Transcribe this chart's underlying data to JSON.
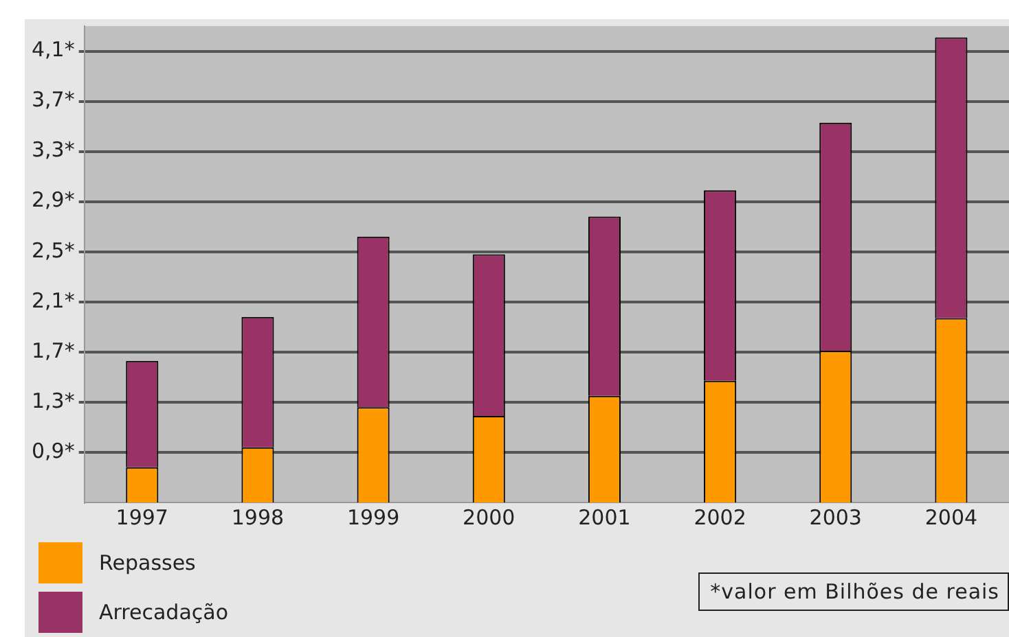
{
  "chart_data": {
    "type": "bar",
    "stacked": true,
    "categories": [
      "1997",
      "1998",
      "1999",
      "2000",
      "2001",
      "2002",
      "2003",
      "2004"
    ],
    "series": [
      {
        "name": "Repasses",
        "color": "#ff9900",
        "values": [
          0.78,
          0.94,
          1.26,
          1.19,
          1.35,
          1.47,
          1.71,
          1.97
        ]
      },
      {
        "name": "Arrecadação",
        "color": "#993366",
        "values": [
          0.85,
          1.04,
          1.36,
          1.29,
          1.43,
          1.52,
          1.82,
          2.24
        ]
      }
    ],
    "ylim": [
      0.5,
      4.3
    ],
    "yticks": [
      {
        "value": 0.9,
        "label": "0,9*"
      },
      {
        "value": 1.3,
        "label": "1,3*"
      },
      {
        "value": 1.7,
        "label": "1,7*"
      },
      {
        "value": 2.1,
        "label": "2,1*"
      },
      {
        "value": 2.5,
        "label": "2,5*"
      },
      {
        "value": 2.9,
        "label": "2,9*"
      },
      {
        "value": 3.3,
        "label": "3,3*"
      },
      {
        "value": 3.7,
        "label": "3,7*"
      },
      {
        "value": 4.1,
        "label": "4,1*"
      }
    ],
    "grid": "y",
    "legend": "bottom left",
    "annotations": [
      "*valor em Bilhões de reais"
    ]
  }
}
